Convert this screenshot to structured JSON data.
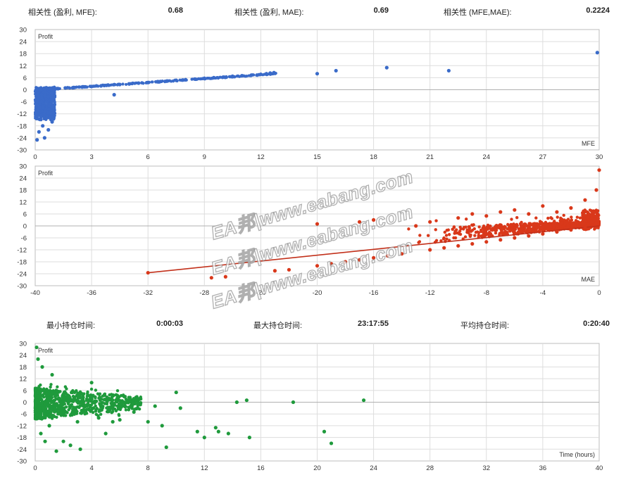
{
  "stats_top": {
    "corr_profit_mfe_label": "相关性 (盈利, MFE):",
    "corr_profit_mfe_value": "0.68",
    "corr_profit_mae_label": "相关性 (盈利, MAE):",
    "corr_profit_mae_value": "0.69",
    "corr_mfe_mae_label": "相关性 (MFE,MAE):",
    "corr_mfe_mae_value": "0.2224"
  },
  "stats_bottom": {
    "min_hold_label": "最小持仓时间:",
    "min_hold_value": "0:00:03",
    "max_hold_label": "最大持仓时间:",
    "max_hold_value": "23:17:55",
    "avg_hold_label": "平均持仓时间:",
    "avg_hold_value": "0:20:40"
  },
  "watermark": "EA邦|www.eabang.com",
  "colors": {
    "mfe": "#3a6bc9",
    "mae": "#d9381a",
    "time": "#1f9a3c",
    "grid": "#dddddd",
    "frame": "#bcbcbc"
  },
  "chart_data": [
    {
      "type": "scatter",
      "ylabel": "Profit",
      "xlabel": "MFE",
      "xlim": [
        0,
        30
      ],
      "ylim": [
        -30,
        30
      ],
      "xticks": [
        0,
        3,
        6,
        9,
        12,
        15,
        18,
        21,
        24,
        27,
        30
      ],
      "yticks": [
        30,
        24,
        18,
        12,
        6,
        0,
        -6,
        -12,
        -18,
        -24,
        -30
      ],
      "grid": true,
      "points": [
        [
          0.1,
          -25
        ],
        [
          0.2,
          -21
        ],
        [
          0.5,
          -24
        ],
        [
          0.4,
          -18
        ],
        [
          0.7,
          -20
        ],
        [
          0.9,
          -16
        ],
        [
          0.3,
          -13
        ],
        [
          0.8,
          -11
        ],
        [
          1.0,
          -9
        ],
        [
          0.6,
          -6
        ],
        [
          0.2,
          -4
        ],
        [
          0.9,
          -2
        ],
        [
          1.2,
          0.5
        ],
        [
          1.6,
          0.9
        ],
        [
          2.0,
          1.0
        ],
        [
          2.5,
          1.3
        ],
        [
          3.0,
          1.6
        ],
        [
          3.5,
          1.9
        ],
        [
          4.2,
          -2.5
        ],
        [
          4.5,
          2.6
        ],
        [
          5.0,
          2.9
        ],
        [
          5.5,
          3.3
        ],
        [
          6.0,
          3.6
        ],
        [
          6.5,
          4.0
        ],
        [
          7.0,
          4.3
        ],
        [
          7.5,
          4.7
        ],
        [
          8.0,
          5.0
        ],
        [
          8.5,
          5.3
        ],
        [
          9.0,
          5.7
        ],
        [
          9.5,
          6.0
        ],
        [
          10.0,
          6.3
        ],
        [
          10.5,
          6.7
        ],
        [
          11.0,
          7.0
        ],
        [
          11.5,
          7.3
        ],
        [
          12.0,
          7.7
        ],
        [
          12.3,
          8.0
        ],
        [
          12.5,
          8.3
        ],
        [
          12.7,
          8.5
        ],
        [
          15.0,
          8.0
        ],
        [
          16.0,
          9.5
        ],
        [
          18.7,
          11.0
        ],
        [
          22.0,
          9.5
        ],
        [
          29.9,
          18.5
        ]
      ]
    },
    {
      "type": "scatter",
      "ylabel": "Profit",
      "xlabel": "MAE",
      "xlim": [
        -40,
        0
      ],
      "ylim": [
        -30,
        30
      ],
      "xticks": [
        -40,
        -36,
        -32,
        -28,
        -24,
        -20,
        -16,
        -12,
        -8,
        -4,
        0
      ],
      "yticks": [
        30,
        24,
        18,
        12,
        6,
        0,
        -6,
        -12,
        -18,
        -24,
        -30
      ],
      "grid": true,
      "trendline": [
        [
          -32,
          -23.5
        ],
        [
          0,
          0
        ]
      ],
      "points": [
        [
          -32,
          -23.5
        ],
        [
          -27.5,
          -26
        ],
        [
          -26.5,
          -25.5
        ],
        [
          -23,
          -22.5
        ],
        [
          -22,
          -22
        ],
        [
          -20,
          -20
        ],
        [
          -20,
          1
        ],
        [
          -19,
          -19
        ],
        [
          -18,
          -18
        ],
        [
          -17,
          -17
        ],
        [
          -17,
          2
        ],
        [
          -16,
          -16
        ],
        [
          -16,
          3
        ],
        [
          -15,
          -15
        ],
        [
          -14,
          -14
        ],
        [
          -13,
          0
        ],
        [
          -12,
          -12
        ],
        [
          -12,
          2
        ],
        [
          -11,
          -11
        ],
        [
          -10,
          -10
        ],
        [
          -10,
          4
        ],
        [
          -9,
          -9
        ],
        [
          -9,
          6
        ],
        [
          -8,
          -8
        ],
        [
          -8,
          5
        ],
        [
          -7,
          -7
        ],
        [
          -7,
          7
        ],
        [
          -6,
          -6
        ],
        [
          -6,
          8
        ],
        [
          -5,
          -5
        ],
        [
          -5,
          6
        ],
        [
          -4,
          -4
        ],
        [
          -4,
          10
        ],
        [
          -3,
          -3
        ],
        [
          -3,
          7
        ],
        [
          -2,
          -2
        ],
        [
          -2,
          9
        ],
        [
          -1,
          -1
        ],
        [
          -1,
          13
        ],
        [
          -0.5,
          5
        ],
        [
          -0.2,
          18
        ],
        [
          0,
          28
        ]
      ]
    },
    {
      "type": "scatter",
      "ylabel": "Profit",
      "xlabel": "Time (hours)",
      "xlim": [
        0,
        40
      ],
      "ylim": [
        -30,
        30
      ],
      "xticks": [
        0,
        4,
        8,
        12,
        16,
        20,
        24,
        28,
        32,
        36,
        40
      ],
      "yticks": [
        30,
        24,
        18,
        12,
        6,
        0,
        -6,
        -12,
        -18,
        -24,
        -30
      ],
      "grid": true,
      "points": [
        [
          0.1,
          28
        ],
        [
          0.2,
          22
        ],
        [
          0.5,
          18
        ],
        [
          0.4,
          -16
        ],
        [
          0.7,
          -20
        ],
        [
          1.0,
          -12
        ],
        [
          1.2,
          14
        ],
        [
          1.5,
          -25
        ],
        [
          2.0,
          -20
        ],
        [
          2.5,
          -22
        ],
        [
          3.0,
          -10
        ],
        [
          3.2,
          -24
        ],
        [
          4.0,
          10
        ],
        [
          4.5,
          -8
        ],
        [
          5.0,
          -16
        ],
        [
          5.5,
          -10
        ],
        [
          6.0,
          -9
        ],
        [
          6.5,
          0
        ],
        [
          7.0,
          -5
        ],
        [
          8.0,
          -10
        ],
        [
          8.5,
          -2
        ],
        [
          9.0,
          -12
        ],
        [
          9.3,
          -23
        ],
        [
          10.0,
          5
        ],
        [
          10.3,
          -3
        ],
        [
          11.5,
          -15
        ],
        [
          12.0,
          -18
        ],
        [
          12.8,
          -13
        ],
        [
          13.0,
          -15
        ],
        [
          13.7,
          -16
        ],
        [
          14.3,
          0
        ],
        [
          15.0,
          1
        ],
        [
          15.2,
          -18
        ],
        [
          18.3,
          0
        ],
        [
          20.5,
          -15
        ],
        [
          21.0,
          -21
        ],
        [
          23.3,
          1
        ]
      ]
    }
  ]
}
